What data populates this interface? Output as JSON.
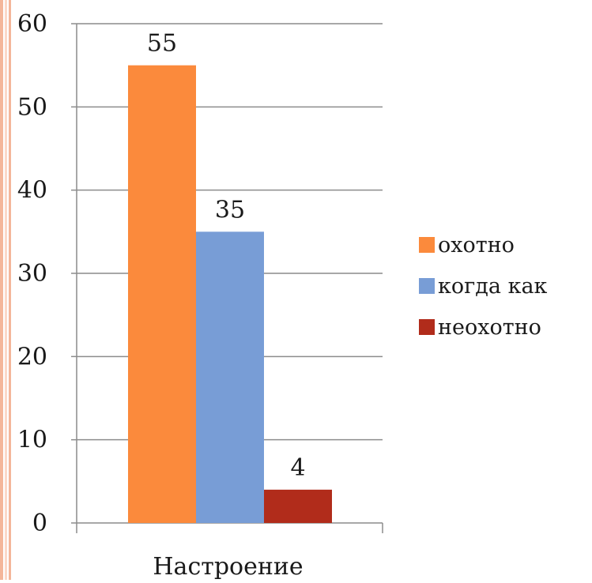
{
  "colors": {
    "page_border_outer": "#f4b69a",
    "page_border_inner": "#fbd9c9",
    "gridline": "#8c8c8c",
    "axis": "#8c8c8c",
    "text": "#1a1a1a"
  },
  "chart_data": {
    "type": "bar",
    "title": "",
    "xlabel": "",
    "ylabel": "",
    "categories": [
      "Настроение"
    ],
    "series": [
      {
        "name": "охотно",
        "values": [
          55
        ],
        "color": "#fb8a3c"
      },
      {
        "name": "когда как",
        "values": [
          35
        ],
        "color": "#789dd6"
      },
      {
        "name": "неохотно",
        "values": [
          4
        ],
        "color": "#b12c1b"
      }
    ],
    "ylim": [
      0,
      60
    ],
    "yticks": [
      0,
      10,
      20,
      30,
      40,
      50,
      60
    ],
    "grid": true,
    "legend": "right",
    "data_labels": true
  }
}
